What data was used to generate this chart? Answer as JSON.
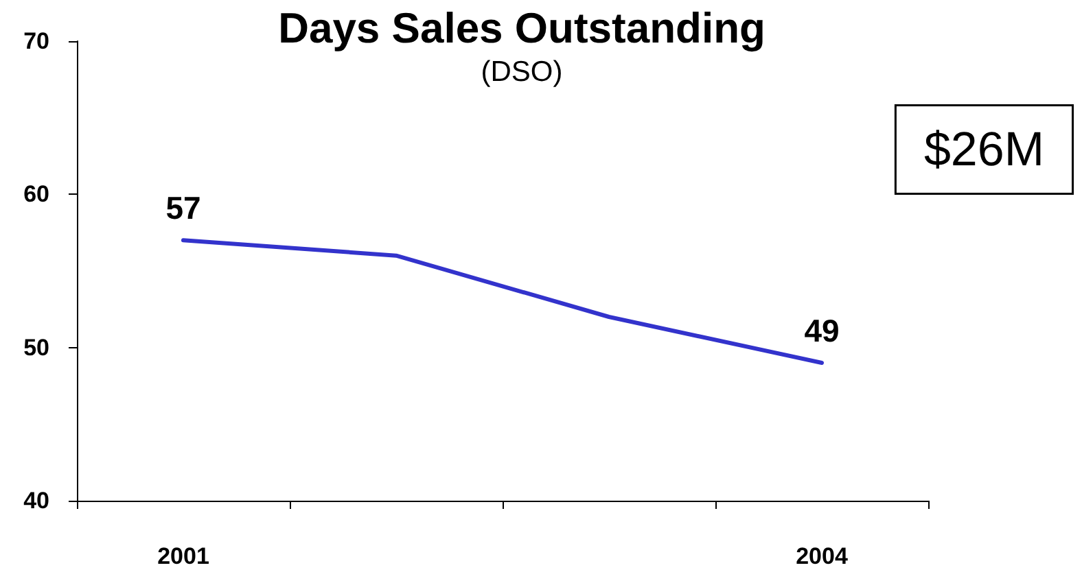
{
  "chart_data": {
    "type": "line",
    "title": "Days Sales Outstanding",
    "subtitle": "(DSO)",
    "categories": [
      "2001",
      null,
      null,
      "2004"
    ],
    "values": [
      57,
      56,
      52,
      49
    ],
    "value_labels": [
      "57",
      null,
      null,
      "49"
    ],
    "color": "#3333cc",
    "ylim": [
      40,
      70
    ],
    "yticks": [
      40,
      50,
      60,
      70
    ],
    "annotations": [
      "$26M"
    ]
  }
}
